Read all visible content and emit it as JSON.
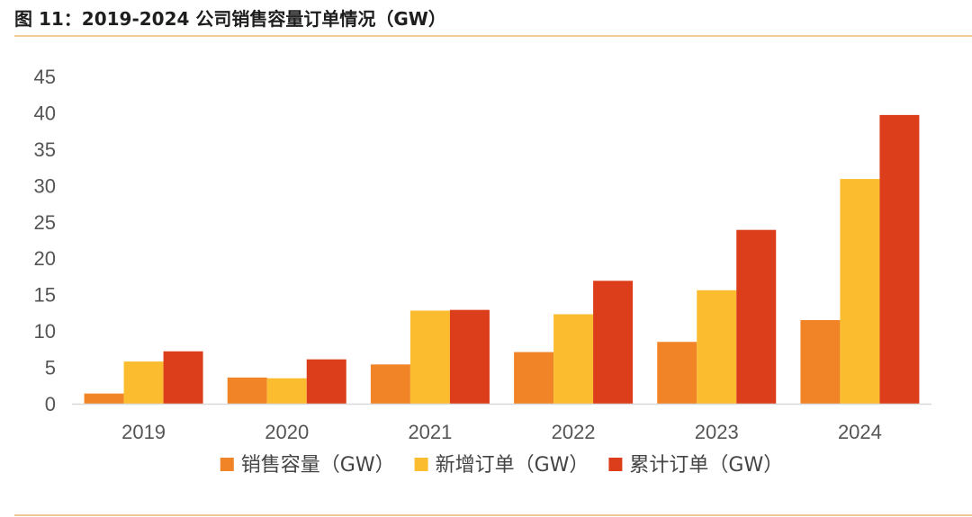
{
  "figure": {
    "title": "图 11：2019-2024 公司销售容量订单情况（GW）"
  },
  "chart_data": {
    "type": "bar",
    "categories": [
      "2019",
      "2020",
      "2021",
      "2022",
      "2023",
      "2024"
    ],
    "series": [
      {
        "name": "销售容量（GW）",
        "color": "#f08427",
        "values": [
          1.4,
          3.6,
          5.4,
          7.1,
          8.5,
          11.5
        ]
      },
      {
        "name": "新增订单（GW）",
        "color": "#fbbd2f",
        "values": [
          5.8,
          3.5,
          12.8,
          12.3,
          15.6,
          30.9
        ]
      },
      {
        "name": "累计订单（GW）",
        "color": "#dc3d1b",
        "values": [
          7.2,
          6.1,
          12.9,
          16.9,
          23.9,
          39.7
        ]
      }
    ],
    "y_ticks": [
      0,
      5,
      10,
      15,
      20,
      25,
      30,
      35,
      40,
      45
    ],
    "ylim": [
      0,
      45
    ],
    "grid": false,
    "legend_position": "bottom"
  }
}
